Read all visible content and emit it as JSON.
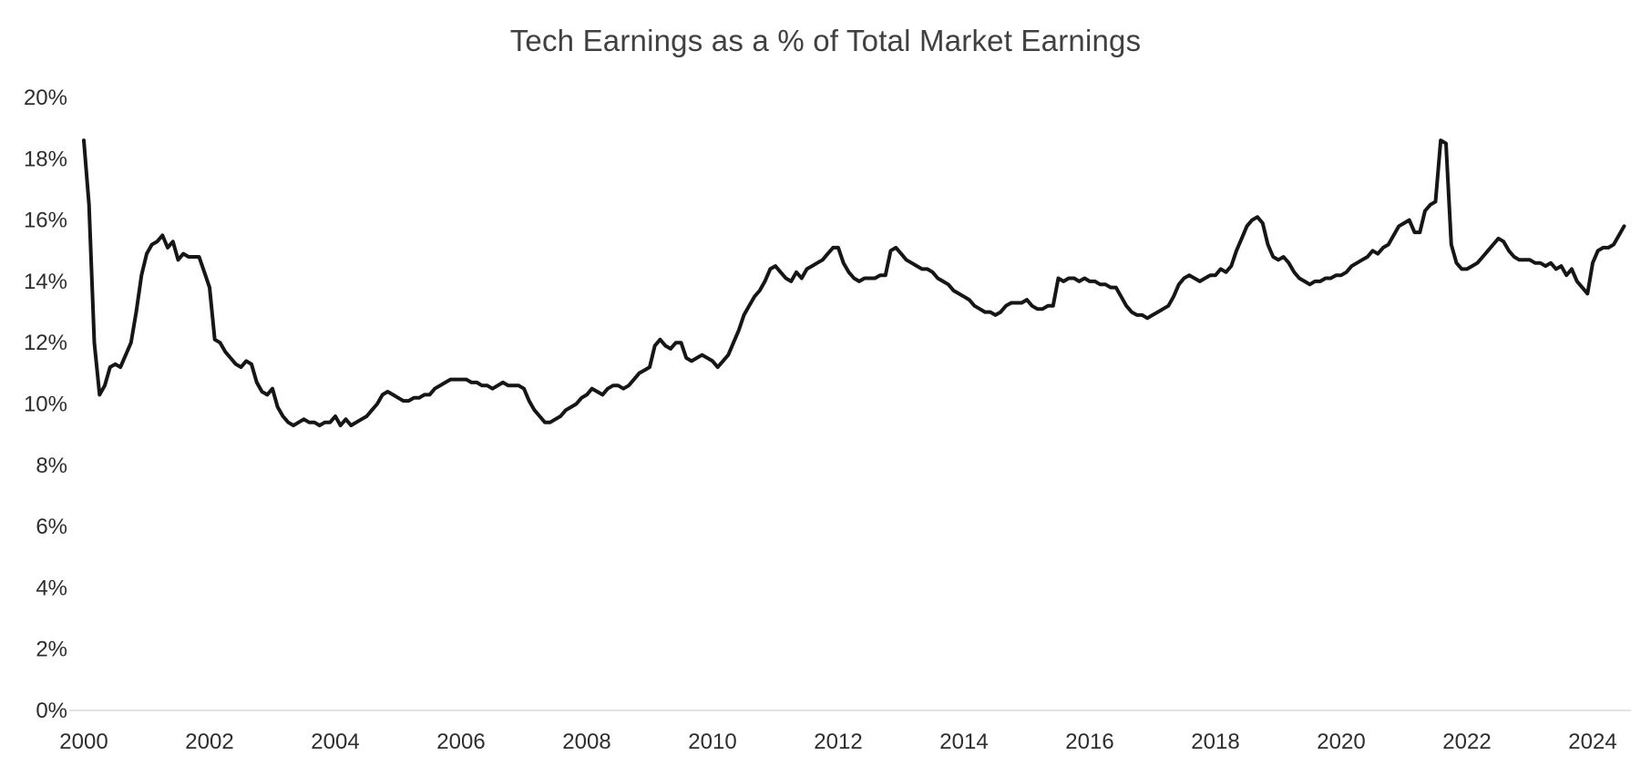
{
  "chart_data": {
    "type": "line",
    "title": "Tech Earnings as a % of Total Market Earnings",
    "xlabel": "",
    "ylabel": "",
    "xlim": [
      2000,
      2024.5
    ],
    "ylim": [
      0,
      20
    ],
    "grid": false,
    "legend": "none",
    "line_color": "#161616",
    "axis_color": "#d9d9d9",
    "text_color": "#2e2e2e",
    "x_tick_values": [
      2000,
      2002,
      2004,
      2006,
      2008,
      2010,
      2012,
      2014,
      2016,
      2018,
      2020,
      2022,
      2024
    ],
    "x_tick_labels": [
      "2000",
      "2002",
      "2004",
      "2006",
      "2008",
      "2010",
      "2012",
      "2014",
      "2016",
      "2018",
      "2020",
      "2022",
      "2024"
    ],
    "y_tick_values": [
      0,
      2,
      4,
      6,
      8,
      10,
      12,
      14,
      16,
      18,
      20
    ],
    "y_tick_labels": [
      "0%",
      "2%",
      "4%",
      "6%",
      "8%",
      "10%",
      "12%",
      "14%",
      "16%",
      "18%",
      "20%"
    ],
    "series_name": "Tech earnings as % of total market earnings",
    "x_start": 2000,
    "points_per_year": 12,
    "values": [
      18.6,
      16.5,
      12.0,
      10.3,
      10.6,
      11.2,
      11.3,
      11.2,
      11.6,
      12.0,
      13.0,
      14.2,
      14.9,
      15.2,
      15.3,
      15.5,
      15.1,
      15.3,
      14.7,
      14.9,
      14.8,
      14.8,
      14.8,
      14.3,
      13.8,
      12.1,
      12.0,
      11.7,
      11.5,
      11.3,
      11.2,
      11.4,
      11.3,
      10.7,
      10.4,
      10.3,
      10.5,
      9.9,
      9.6,
      9.4,
      9.3,
      9.4,
      9.5,
      9.4,
      9.4,
      9.3,
      9.4,
      9.4,
      9.6,
      9.3,
      9.5,
      9.3,
      9.4,
      9.5,
      9.6,
      9.8,
      10.0,
      10.3,
      10.4,
      10.3,
      10.2,
      10.1,
      10.1,
      10.2,
      10.2,
      10.3,
      10.3,
      10.5,
      10.6,
      10.7,
      10.8,
      10.8,
      10.8,
      10.8,
      10.7,
      10.7,
      10.6,
      10.6,
      10.5,
      10.6,
      10.7,
      10.6,
      10.6,
      10.6,
      10.5,
      10.1,
      9.8,
      9.6,
      9.4,
      9.4,
      9.5,
      9.6,
      9.8,
      9.9,
      10.0,
      10.2,
      10.3,
      10.5,
      10.4,
      10.3,
      10.5,
      10.6,
      10.6,
      10.5,
      10.6,
      10.8,
      11.0,
      11.1,
      11.2,
      11.9,
      12.1,
      11.9,
      11.8,
      12.0,
      12.0,
      11.5,
      11.4,
      11.5,
      11.6,
      11.5,
      11.4,
      11.2,
      11.4,
      11.6,
      12.0,
      12.4,
      12.9,
      13.2,
      13.5,
      13.7,
      14.0,
      14.4,
      14.5,
      14.3,
      14.1,
      14.0,
      14.3,
      14.1,
      14.4,
      14.5,
      14.6,
      14.7,
      14.9,
      15.1,
      15.1,
      14.6,
      14.3,
      14.1,
      14.0,
      14.1,
      14.1,
      14.1,
      14.2,
      14.2,
      15.0,
      15.1,
      14.9,
      14.7,
      14.6,
      14.5,
      14.4,
      14.4,
      14.3,
      14.1,
      14.0,
      13.9,
      13.7,
      13.6,
      13.5,
      13.4,
      13.2,
      13.1,
      13.0,
      13.0,
      12.9,
      13.0,
      13.2,
      13.3,
      13.3,
      13.3,
      13.4,
      13.2,
      13.1,
      13.1,
      13.2,
      13.2,
      14.1,
      14.0,
      14.1,
      14.1,
      14.0,
      14.1,
      14.0,
      14.0,
      13.9,
      13.9,
      13.8,
      13.8,
      13.5,
      13.2,
      13.0,
      12.9,
      12.9,
      12.8,
      12.9,
      13.0,
      13.1,
      13.2,
      13.5,
      13.9,
      14.1,
      14.2,
      14.1,
      14.0,
      14.1,
      14.2,
      14.2,
      14.4,
      14.3,
      14.5,
      15.0,
      15.4,
      15.8,
      16.0,
      16.1,
      15.9,
      15.2,
      14.8,
      14.7,
      14.8,
      14.6,
      14.3,
      14.1,
      14.0,
      13.9,
      14.0,
      14.0,
      14.1,
      14.1,
      14.2,
      14.2,
      14.3,
      14.5,
      14.6,
      14.7,
      14.8,
      15.0,
      14.9,
      15.1,
      15.2,
      15.5,
      15.8,
      15.9,
      16.0,
      15.6,
      15.6,
      16.3,
      16.5,
      16.6,
      18.6,
      18.5,
      15.2,
      14.6,
      14.4,
      14.4,
      14.5,
      14.6,
      14.8,
      15.0,
      15.2,
      15.4,
      15.3,
      15.0,
      14.8,
      14.7,
      14.7,
      14.7,
      14.6,
      14.6,
      14.5,
      14.6,
      14.4,
      14.5,
      14.2,
      14.4,
      14.0,
      13.8,
      13.6,
      14.6,
      15.0,
      15.1,
      15.1,
      15.2,
      15.5,
      15.8
    ]
  }
}
